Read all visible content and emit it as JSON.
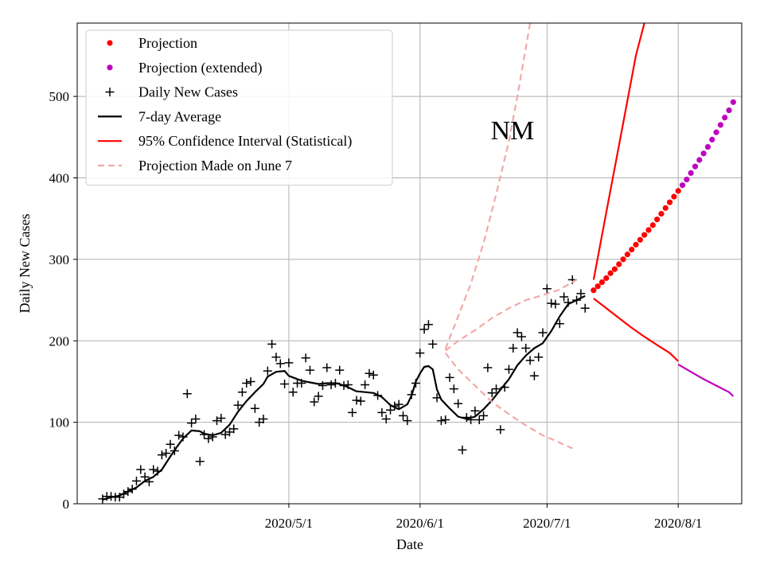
{
  "chart_data": {
    "type": "line",
    "title": "NM",
    "xlabel": "Date",
    "ylabel": "Daily New Cases",
    "xlim": [
      -50,
      107
    ],
    "ylim": [
      0,
      590
    ],
    "grid": true,
    "legend_position": "top-left",
    "xticks": [
      {
        "day": 0,
        "label": "2020/5/1"
      },
      {
        "day": 31,
        "label": "2020/6/1"
      },
      {
        "day": 61,
        "label": "2020/7/1"
      },
      {
        "day": 92,
        "label": "2020/8/1"
      }
    ],
    "yticks": [
      0,
      100,
      200,
      300,
      400,
      500
    ],
    "colors": {
      "projection": "#ff0000",
      "projection_extended": "#bf00bf",
      "daily": "#000000",
      "average": "#000000",
      "ci": "#ff0000",
      "june7": "#f4a8a8"
    },
    "legend": [
      {
        "key": "projection",
        "label": "Projection"
      },
      {
        "key": "projection_extended",
        "label": "Projection (extended)"
      },
      {
        "key": "daily",
        "label": "Daily New Cases"
      },
      {
        "key": "average",
        "label": "7-day Average"
      },
      {
        "key": "ci",
        "label": "95% Confidence Interval (Statistical)"
      },
      {
        "key": "june7",
        "label": "Projection Made on June 7"
      }
    ],
    "series": [
      {
        "name": "Daily New Cases",
        "key": "daily",
        "style": "plus",
        "points": [
          [
            -44,
            6
          ],
          [
            -43,
            9
          ],
          [
            -42,
            9
          ],
          [
            -41,
            8
          ],
          [
            -40,
            8
          ],
          [
            -39,
            12
          ],
          [
            -38,
            15
          ],
          [
            -37,
            18
          ],
          [
            -36,
            28
          ],
          [
            -35,
            42
          ],
          [
            -34,
            33
          ],
          [
            -33,
            27
          ],
          [
            -32,
            42
          ],
          [
            -31,
            40
          ],
          [
            -30,
            60
          ],
          [
            -29,
            62
          ],
          [
            -28,
            73
          ],
          [
            -27,
            65
          ],
          [
            -26,
            84
          ],
          [
            -25,
            82
          ],
          [
            -24,
            135
          ],
          [
            -23,
            99
          ],
          [
            -22,
            104
          ],
          [
            -21,
            52
          ],
          [
            -20,
            85
          ],
          [
            -19,
            80
          ],
          [
            -18,
            82
          ],
          [
            -17,
            102
          ],
          [
            -16,
            105
          ],
          [
            -15,
            85
          ],
          [
            -14,
            88
          ],
          [
            -13,
            92
          ],
          [
            -12,
            121
          ],
          [
            -11,
            137
          ],
          [
            -10,
            148
          ],
          [
            -9,
            150
          ],
          [
            -8,
            117
          ],
          [
            -7,
            100
          ],
          [
            -6,
            104
          ],
          [
            -5,
            163
          ],
          [
            -4,
            196
          ],
          [
            -3,
            180
          ],
          [
            -2,
            172
          ],
          [
            -1,
            147
          ],
          [
            0,
            173
          ],
          [
            1,
            137
          ],
          [
            2,
            148
          ],
          [
            3,
            148
          ],
          [
            4,
            179
          ],
          [
            5,
            164
          ],
          [
            6,
            125
          ],
          [
            7,
            132
          ],
          [
            8,
            145
          ],
          [
            9,
            167
          ],
          [
            10,
            146
          ],
          [
            11,
            148
          ],
          [
            12,
            164
          ],
          [
            13,
            145
          ],
          [
            14,
            146
          ],
          [
            15,
            112
          ],
          [
            16,
            127
          ],
          [
            17,
            126
          ],
          [
            18,
            146
          ],
          [
            19,
            160
          ],
          [
            20,
            158
          ],
          [
            21,
            133
          ],
          [
            22,
            112
          ],
          [
            23,
            104
          ],
          [
            24,
            115
          ],
          [
            25,
            120
          ],
          [
            26,
            122
          ],
          [
            27,
            108
          ],
          [
            28,
            102
          ],
          [
            29,
            134
          ],
          [
            30,
            148
          ],
          [
            31,
            185
          ],
          [
            32,
            214
          ],
          [
            33,
            220
          ],
          [
            34,
            196
          ],
          [
            35,
            130
          ],
          [
            36,
            102
          ],
          [
            37,
            103
          ],
          [
            38,
            155
          ],
          [
            39,
            141
          ],
          [
            40,
            123
          ],
          [
            41,
            66
          ],
          [
            42,
            106
          ],
          [
            43,
            103
          ],
          [
            44,
            114
          ],
          [
            45,
            103
          ],
          [
            46,
            108
          ],
          [
            47,
            167
          ],
          [
            48,
            136
          ],
          [
            49,
            141
          ],
          [
            50,
            91
          ],
          [
            51,
            143
          ],
          [
            52,
            165
          ],
          [
            53,
            191
          ],
          [
            54,
            210
          ],
          [
            55,
            205
          ],
          [
            56,
            191
          ],
          [
            57,
            176
          ],
          [
            58,
            157
          ],
          [
            59,
            180
          ],
          [
            60,
            210
          ],
          [
            61,
            264
          ],
          [
            62,
            246
          ],
          [
            63,
            245
          ],
          [
            64,
            221
          ],
          [
            65,
            254
          ],
          [
            66,
            247
          ],
          [
            67,
            275
          ],
          [
            68,
            250
          ],
          [
            69,
            258
          ],
          [
            70,
            240
          ]
        ]
      },
      {
        "name": "7-day Average",
        "key": "average",
        "style": "line",
        "points": [
          [
            -44,
            5
          ],
          [
            -42,
            8
          ],
          [
            -40,
            10
          ],
          [
            -38,
            15
          ],
          [
            -36,
            20
          ],
          [
            -34,
            28
          ],
          [
            -32,
            33
          ],
          [
            -30,
            42
          ],
          [
            -28,
            58
          ],
          [
            -26,
            73
          ],
          [
            -25,
            80
          ],
          [
            -23,
            90
          ],
          [
            -21,
            89
          ],
          [
            -20,
            86
          ],
          [
            -18,
            84
          ],
          [
            -16,
            87
          ],
          [
            -14,
            97
          ],
          [
            -12,
            113
          ],
          [
            -10,
            126
          ],
          [
            -8,
            137
          ],
          [
            -6,
            147
          ],
          [
            -5,
            156
          ],
          [
            -3,
            162
          ],
          [
            -1,
            163
          ],
          [
            0,
            157
          ],
          [
            1,
            155
          ],
          [
            3,
            151
          ],
          [
            5,
            149
          ],
          [
            7,
            147
          ],
          [
            9,
            148
          ],
          [
            11,
            148
          ],
          [
            12,
            147
          ],
          [
            14,
            143
          ],
          [
            16,
            138
          ],
          [
            18,
            137
          ],
          [
            20,
            136
          ],
          [
            22,
            131
          ],
          [
            24,
            121
          ],
          [
            26,
            116
          ],
          [
            28,
            122
          ],
          [
            29,
            133
          ],
          [
            30,
            150
          ],
          [
            31,
            160
          ],
          [
            32,
            168
          ],
          [
            33,
            169
          ],
          [
            34,
            165
          ],
          [
            35,
            140
          ],
          [
            36,
            128
          ],
          [
            38,
            117
          ],
          [
            40,
            107
          ],
          [
            42,
            104
          ],
          [
            44,
            107
          ],
          [
            46,
            116
          ],
          [
            48,
            127
          ],
          [
            50,
            140
          ],
          [
            52,
            153
          ],
          [
            54,
            170
          ],
          [
            56,
            182
          ],
          [
            58,
            191
          ],
          [
            60,
            197
          ],
          [
            62,
            212
          ],
          [
            64,
            230
          ],
          [
            66,
            245
          ],
          [
            68,
            250
          ],
          [
            70,
            255
          ]
        ]
      },
      {
        "name": "Projection",
        "key": "projection",
        "style": "dot",
        "points": [
          [
            72,
            262
          ],
          [
            73,
            267
          ],
          [
            74,
            272
          ],
          [
            75,
            277
          ],
          [
            76,
            283
          ],
          [
            77,
            288
          ],
          [
            78,
            294
          ],
          [
            79,
            300
          ],
          [
            80,
            306
          ],
          [
            81,
            312
          ],
          [
            82,
            318
          ],
          [
            83,
            324
          ],
          [
            84,
            330
          ],
          [
            85,
            336
          ],
          [
            86,
            342
          ],
          [
            87,
            349
          ],
          [
            88,
            356
          ],
          [
            89,
            363
          ],
          [
            90,
            370
          ],
          [
            91,
            377
          ],
          [
            92,
            384
          ]
        ]
      },
      {
        "name": "Projection (extended)",
        "key": "projection_extended",
        "style": "dot",
        "points": [
          [
            93,
            391
          ],
          [
            94,
            398
          ],
          [
            95,
            406
          ],
          [
            96,
            414
          ],
          [
            97,
            422
          ],
          [
            98,
            430
          ],
          [
            99,
            438
          ],
          [
            100,
            447
          ],
          [
            101,
            456
          ],
          [
            102,
            465
          ],
          [
            103,
            474
          ],
          [
            104,
            483
          ],
          [
            105,
            493
          ]
        ]
      },
      {
        "name": "95% CI upper",
        "key": "ci",
        "style": "line",
        "points": [
          [
            72,
            275
          ],
          [
            74,
            330
          ],
          [
            76,
            385
          ],
          [
            78,
            440
          ],
          [
            80,
            495
          ],
          [
            82,
            550
          ],
          [
            84,
            590
          ]
        ]
      },
      {
        "name": "95% CI lower",
        "key": "ci",
        "style": "line",
        "points": [
          [
            72,
            252
          ],
          [
            75,
            240
          ],
          [
            78,
            228
          ],
          [
            81,
            216
          ],
          [
            84,
            205
          ],
          [
            87,
            195
          ],
          [
            90,
            185
          ],
          [
            92,
            175
          ]
        ]
      },
      {
        "name": "95% CI lower (extended)",
        "key": "projection_extended",
        "style": "line",
        "points": [
          [
            92,
            171
          ],
          [
            95,
            162
          ],
          [
            98,
            153
          ],
          [
            101,
            145
          ],
          [
            104,
            137
          ],
          [
            105,
            132
          ]
        ]
      },
      {
        "name": "June 7 projection upper",
        "key": "june7",
        "style": "dash",
        "points": [
          [
            37,
            190
          ],
          [
            40,
            230
          ],
          [
            43,
            270
          ],
          [
            46,
            320
          ],
          [
            49,
            380
          ],
          [
            52,
            445
          ],
          [
            54,
            500
          ],
          [
            56,
            560
          ],
          [
            57,
            590
          ]
        ]
      },
      {
        "name": "June 7 projection central",
        "key": "june7",
        "style": "dash",
        "points": [
          [
            37,
            188
          ],
          [
            40,
            200
          ],
          [
            44,
            213
          ],
          [
            48,
            228
          ],
          [
            52,
            240
          ],
          [
            56,
            250
          ],
          [
            60,
            256
          ],
          [
            64,
            263
          ],
          [
            68,
            275
          ]
        ]
      },
      {
        "name": "June 7 projection lower",
        "key": "june7",
        "style": "dash",
        "points": [
          [
            37,
            185
          ],
          [
            40,
            165
          ],
          [
            44,
            145
          ],
          [
            48,
            125
          ],
          [
            52,
            110
          ],
          [
            56,
            96
          ],
          [
            60,
            84
          ],
          [
            64,
            75
          ],
          [
            67,
            68
          ]
        ]
      }
    ]
  }
}
